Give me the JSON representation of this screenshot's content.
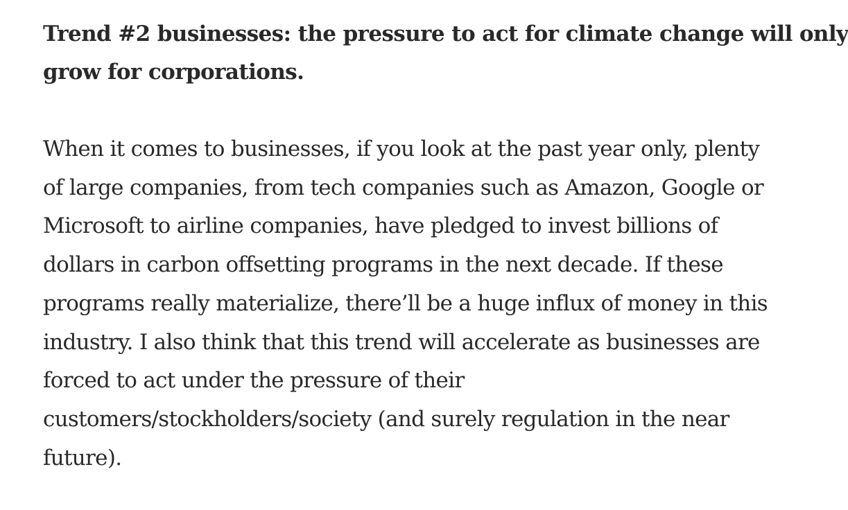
{
  "article": {
    "heading": {
      "lines": [
        "Trend #2 businesses: the pressure to act for climate change will only",
        "grow for corporations."
      ]
    },
    "paragraph": {
      "lines": [
        "When it comes to businesses, if you look at the past year only, plenty",
        "of large companies, from tech companies such as Amazon, Google or",
        "Microsoft to airline companies, have pledged to invest billions of",
        "dollars in carbon offsetting programs in the next decade. If these",
        "programs really materialize, there’ll be a huge influx of money in this",
        "industry. I also think that this trend will accelerate as businesses are",
        "forced to act under the pressure of their",
        "customers/stockholders/society (and surely regulation in the near",
        "future)."
      ]
    }
  }
}
